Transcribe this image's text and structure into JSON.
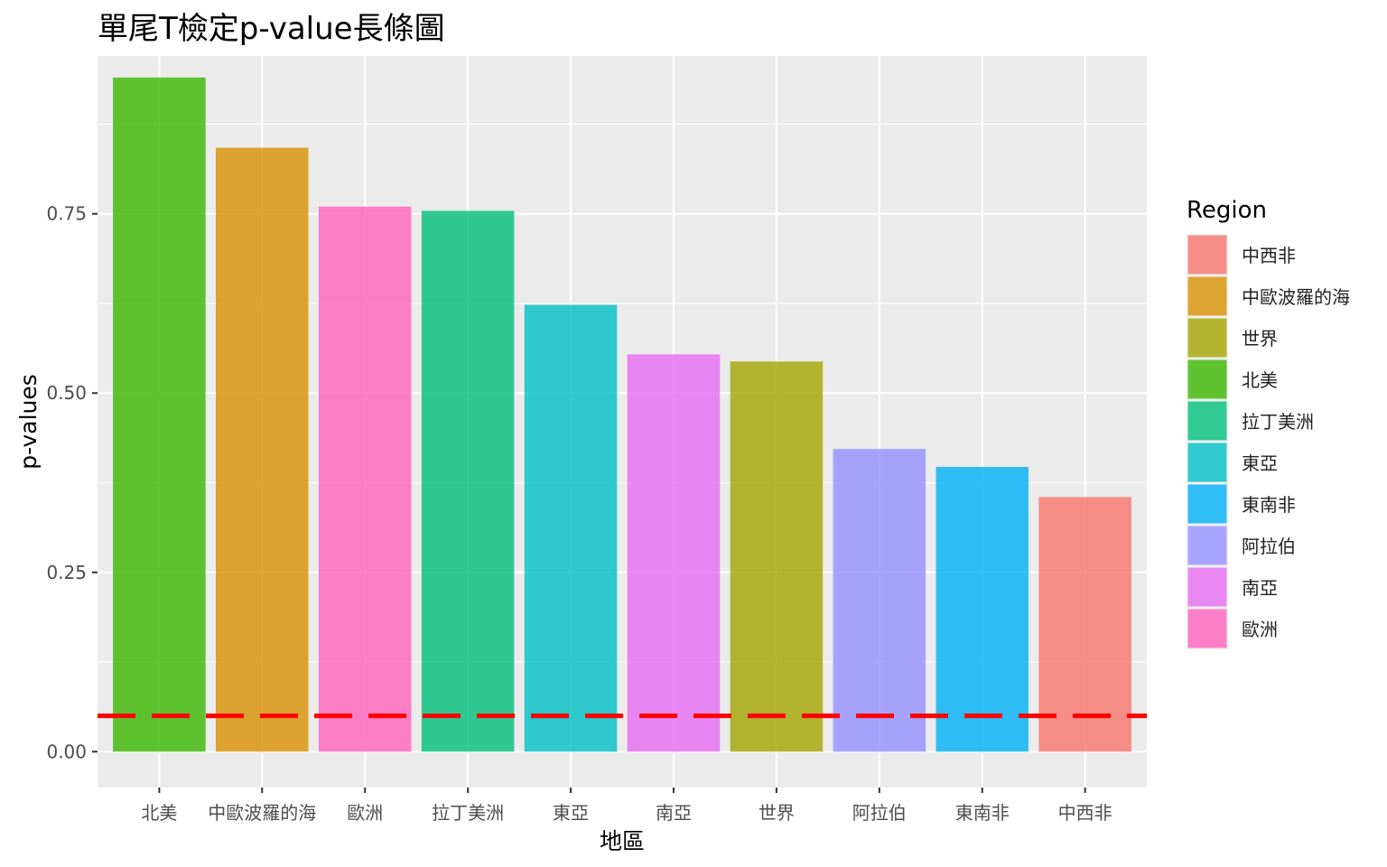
{
  "chart_data": {
    "type": "bar",
    "title": "單尾T檢定p-value長條圖",
    "xlabel": "地區",
    "ylabel": "p-values",
    "ylim": [
      -0.05,
      0.97
    ],
    "yticks": [
      0.0,
      0.25,
      0.5,
      0.75
    ],
    "ytick_labels": [
      "0.00",
      "0.25",
      "0.50",
      "0.75"
    ],
    "categories": [
      "北美",
      "中歐波羅的海",
      "歐洲",
      "拉丁美洲",
      "東亞",
      "南亞",
      "世界",
      "阿拉伯",
      "東南非",
      "中西非"
    ],
    "values": [
      0.94,
      0.842,
      0.76,
      0.754,
      0.623,
      0.554,
      0.544,
      0.422,
      0.397,
      0.355
    ],
    "reference_line": {
      "value": 0.05,
      "color": "#ff0000",
      "style": "dashed"
    },
    "grid": true,
    "legend_position": "right",
    "legend": {
      "title": "Region",
      "items": [
        {
          "label": "中西非",
          "color": "#F8766D"
        },
        {
          "label": "中歐波羅的海",
          "color": "#D89000"
        },
        {
          "label": "世界",
          "color": "#A3A500"
        },
        {
          "label": "北美",
          "color": "#39B600"
        },
        {
          "label": "拉丁美洲",
          "color": "#00BF7D"
        },
        {
          "label": "東亞",
          "color": "#00BFC4"
        },
        {
          "label": "東南非",
          "color": "#00B0F6"
        },
        {
          "label": "阿拉伯",
          "color": "#9590FF"
        },
        {
          "label": "南亞",
          "color": "#E76BF3"
        },
        {
          "label": "歐洲",
          "color": "#FF62BC"
        }
      ]
    },
    "colors": {
      "panel_background": "#EBEBEB",
      "grid": "#FFFFFF",
      "bar_alpha": 0.8
    }
  }
}
